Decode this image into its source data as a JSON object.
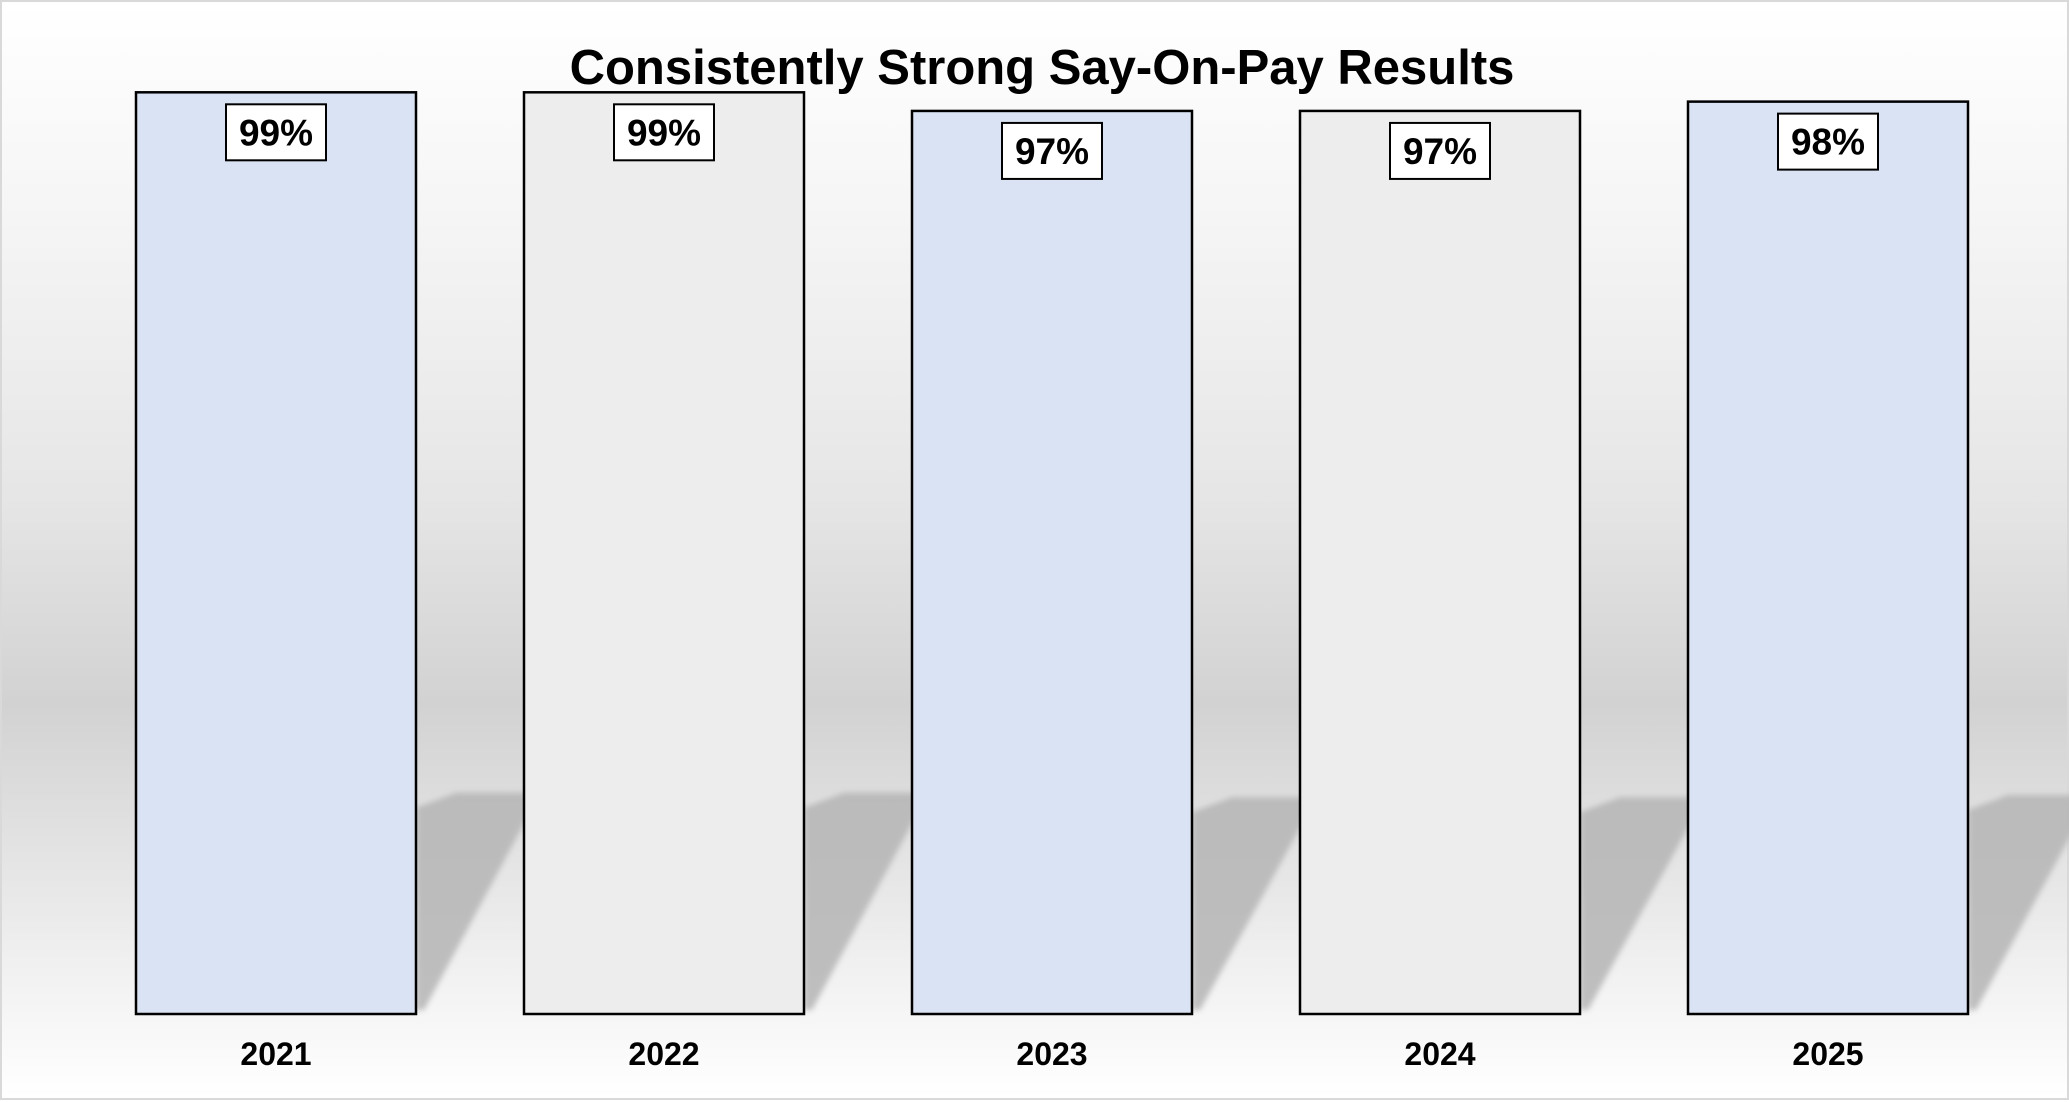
{
  "chart_data": {
    "type": "bar",
    "title": "Consistently Strong Say-On-Pay Results",
    "xlabel": "",
    "ylabel": "",
    "categories": [
      "2021",
      "2022",
      "2023",
      "2024",
      "2025"
    ],
    "values": [
      99,
      99,
      97,
      97,
      98
    ],
    "data_labels": [
      "99%",
      "99%",
      "97%",
      "97%",
      "98%"
    ],
    "ylim": [
      0,
      100
    ],
    "grid": false,
    "legend": "none",
    "colors": {
      "bar_alternate": [
        "#dae3f3",
        "#ededed"
      ],
      "bar_border": "#000000",
      "shadow": "#b5b5b5",
      "label_box_fill": "#ffffff"
    }
  }
}
